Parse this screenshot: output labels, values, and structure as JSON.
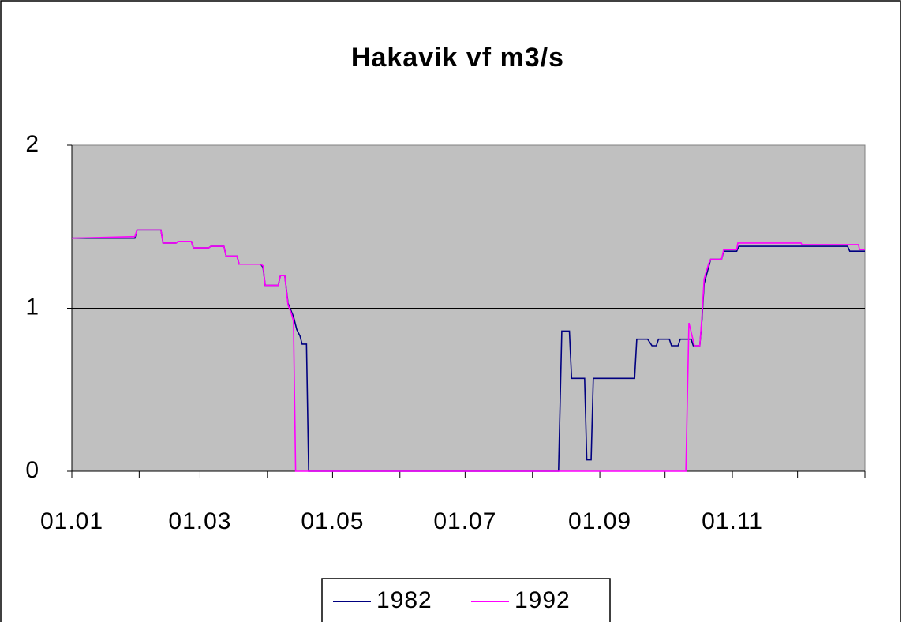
{
  "chart_data": {
    "type": "line",
    "title": "Hakavik vf m3/s",
    "xlim": [
      1,
      366
    ],
    "ylim": [
      0,
      2
    ],
    "yticks": [
      0,
      1,
      2
    ],
    "grid": true,
    "xticks": [
      {
        "value": 1,
        "label": "01.01"
      },
      {
        "value": 60,
        "label": "01.03"
      },
      {
        "value": 121,
        "label": "01.05"
      },
      {
        "value": 182,
        "label": "01.07"
      },
      {
        "value": 244,
        "label": "01.09"
      },
      {
        "value": 305,
        "label": "01.11"
      }
    ],
    "xminor_ticks": [
      32,
      91,
      152,
      213,
      274,
      335,
      366
    ],
    "legend": "bottom",
    "series": [
      {
        "name": "1982",
        "color": "#000080",
        "x": [
          1,
          30,
          31,
          42,
          43,
          49,
          50,
          56,
          57,
          64,
          65,
          71,
          72,
          77,
          78,
          88,
          89,
          90,
          96,
          97,
          99,
          100.5,
          103,
          104.5,
          106,
          107,
          109,
          110,
          225,
          226.5,
          230,
          231,
          237,
          238,
          240,
          241,
          260,
          261,
          266,
          268,
          270,
          271,
          276,
          277,
          280,
          281,
          286,
          287,
          290,
          291,
          292,
          294,
          295,
          300,
          301,
          307,
          308,
          358,
          359,
          366
        ],
        "values": [
          1.43,
          1.43,
          1.48,
          1.48,
          1.4,
          1.4,
          1.41,
          1.41,
          1.37,
          1.37,
          1.38,
          1.38,
          1.32,
          1.32,
          1.27,
          1.27,
          1.25,
          1.14,
          1.14,
          1.2,
          1.2,
          1.03,
          0.95,
          0.87,
          0.83,
          0.78,
          0.78,
          0,
          0,
          0.86,
          0.86,
          0.57,
          0.57,
          0.07,
          0.07,
          0.57,
          0.57,
          0.81,
          0.81,
          0.77,
          0.77,
          0.81,
          0.81,
          0.77,
          0.77,
          0.81,
          0.81,
          0.77,
          0.77,
          0.93,
          1.15,
          1.25,
          1.3,
          1.3,
          1.35,
          1.35,
          1.38,
          1.38,
          1.35,
          1.35
        ]
      },
      {
        "name": "1992",
        "color": "#ff00ff",
        "x": [
          1,
          30,
          31,
          42,
          43,
          49,
          50,
          56,
          57,
          64,
          65,
          71,
          72,
          77,
          78,
          88,
          89,
          90,
          96,
          97,
          99,
          100.5,
          102,
          103,
          104,
          283.6,
          285,
          287,
          287.5,
          290,
          291,
          292,
          294,
          295,
          300,
          301,
          307,
          307.5,
          336.6,
          337,
          363,
          363.5,
          366
        ],
        "values": [
          1.43,
          1.44,
          1.48,
          1.48,
          1.4,
          1.4,
          1.41,
          1.41,
          1.37,
          1.37,
          1.38,
          1.38,
          1.32,
          1.32,
          1.27,
          1.27,
          1.26,
          1.14,
          1.14,
          1.2,
          1.2,
          1.02,
          0.97,
          0.92,
          0,
          0,
          0.91,
          0.8,
          0.77,
          0.77,
          0.95,
          1.18,
          1.27,
          1.3,
          1.3,
          1.36,
          1.36,
          1.4,
          1.4,
          1.39,
          1.39,
          1.36,
          1.36
        ]
      }
    ]
  }
}
